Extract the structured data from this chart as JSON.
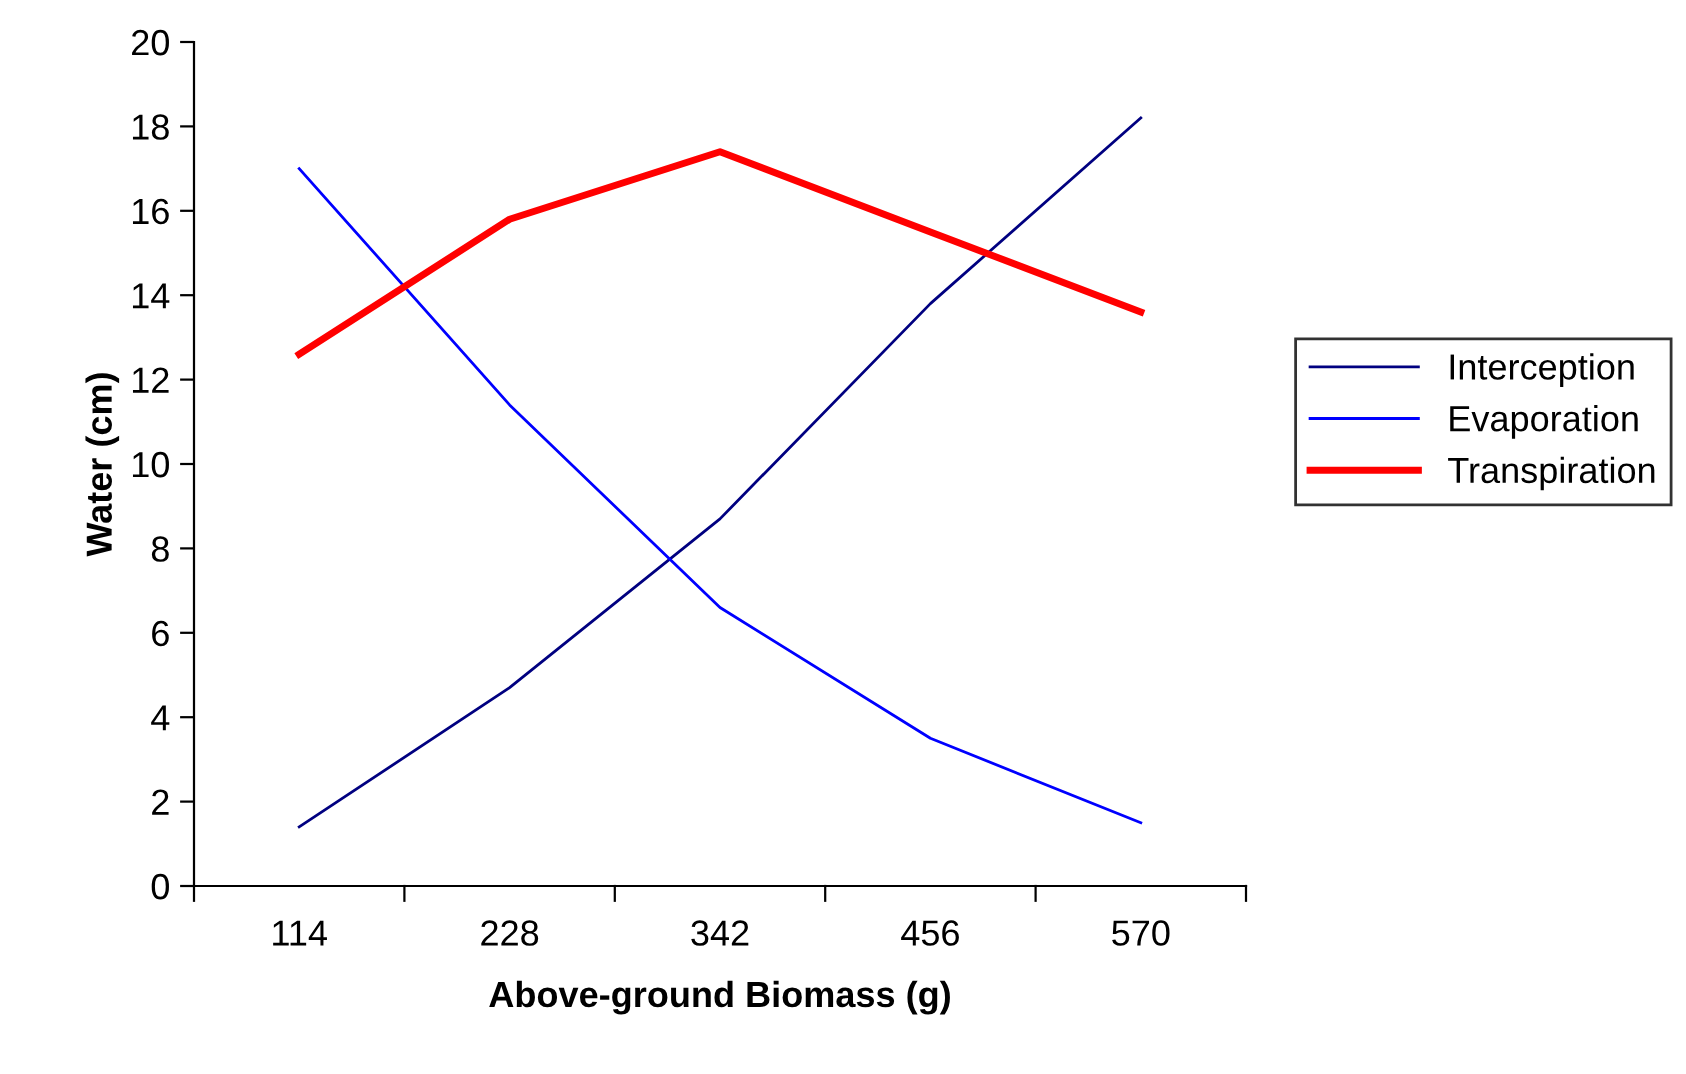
{
  "chart_data": {
    "type": "line",
    "xlabel": "Above-ground Biomass (g)",
    "ylabel": "Water (cm)",
    "categories": [
      "114",
      "228",
      "342",
      "456",
      "570"
    ],
    "series": [
      {
        "name": "Interception",
        "color": "#000080",
        "values": [
          1.4,
          4.7,
          8.7,
          13.8,
          18.2
        ]
      },
      {
        "name": "Evaporation",
        "color": "#0000ff",
        "values": [
          17.0,
          11.4,
          6.6,
          3.5,
          1.5
        ]
      },
      {
        "name": "Transpiration",
        "color": "#ff0000",
        "values": [
          12.6,
          15.8,
          17.4,
          15.5,
          13.6
        ]
      }
    ],
    "ylim": [
      0,
      20
    ],
    "yticks": [
      0,
      2,
      4,
      6,
      8,
      10,
      12,
      14,
      16,
      18,
      20
    ],
    "grid": false,
    "legend": "right",
    "marker": "none",
    "line_style": "solid"
  }
}
